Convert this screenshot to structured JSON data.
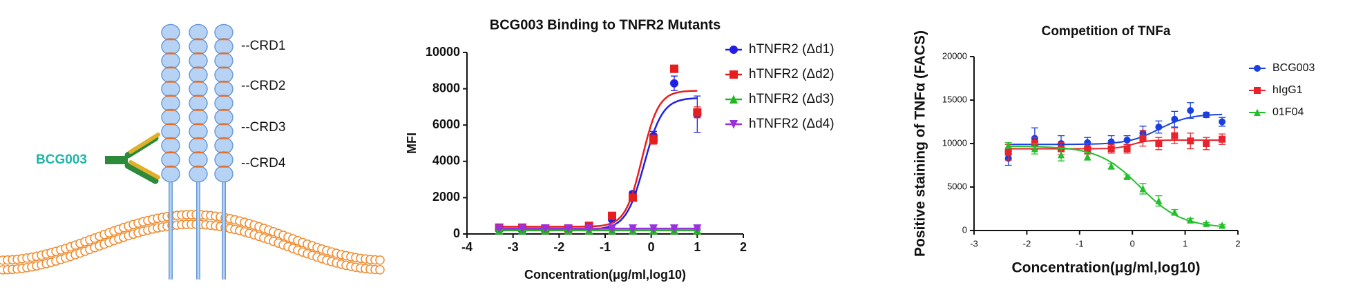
{
  "diagram": {
    "labels": [
      "--CRD1",
      "--CRD2",
      "--CRD3",
      "--CRD4"
    ],
    "antibody": "BCG003"
  },
  "chart_data": [
    {
      "type": "line",
      "title": "BCG003 Binding to TNFR2 Mutants",
      "x_label": "Concentration(μg/ml,log10)",
      "y_label": "MFI",
      "xlim": [
        -4,
        2
      ],
      "xticks": [
        -4,
        -3,
        -2,
        -1,
        0,
        1,
        2
      ],
      "ylim": [
        0,
        10000
      ],
      "yticks": [
        0,
        2000,
        4000,
        6000,
        8000,
        10000
      ],
      "grid": false,
      "legend": "right",
      "x": [
        -3.3,
        -2.8,
        -2.3,
        -1.8,
        -1.35,
        -0.85,
        -0.4,
        0.05,
        0.5,
        1.0
      ],
      "series": [
        {
          "name": "hTNFR2 (Δd1)",
          "color": "#1f1fe6",
          "marker": "circle",
          "values": [
            250,
            200,
            200,
            250,
            350,
            800,
            2200,
            5400,
            8300,
            6600
          ],
          "errors": [
            50,
            40,
            40,
            50,
            60,
            100,
            150,
            250,
            400,
            1000
          ],
          "fit": {
            "left": 250,
            "right": 7500,
            "log_ec50": -0.15,
            "hill": 2.2
          }
        },
        {
          "name": "hTNFR2 (Δd2)",
          "color": "#e61e1e",
          "marker": "square",
          "values": [
            350,
            350,
            300,
            300,
            450,
            1000,
            2000,
            5200,
            9100,
            6700
          ],
          "errors": [
            50,
            50,
            40,
            40,
            60,
            100,
            150,
            250,
            200,
            300
          ],
          "fit": {
            "left": 400,
            "right": 7900,
            "log_ec50": -0.2,
            "hill": 2.4
          }
        },
        {
          "name": "hTNFR2 (Δd3)",
          "color": "#1fb81f",
          "marker": "triangle-up",
          "values": [
            200,
            200,
            200,
            200,
            200,
            200,
            200,
            200,
            200,
            200
          ],
          "errors": [
            30,
            30,
            30,
            30,
            30,
            30,
            30,
            30,
            30,
            30
          ],
          "fit": {
            "left": 200,
            "right": 200,
            "log_ec50": 0,
            "hill": 1
          }
        },
        {
          "name": "hTNFR2 (Δd4)",
          "color": "#9b30e0",
          "marker": "triangle-down",
          "values": [
            300,
            300,
            300,
            300,
            300,
            300,
            300,
            300,
            300,
            300
          ],
          "errors": [
            30,
            30,
            30,
            30,
            30,
            30,
            30,
            30,
            30,
            30
          ],
          "fit": {
            "left": 300,
            "right": 300,
            "log_ec50": 0,
            "hill": 1
          }
        }
      ]
    },
    {
      "type": "line",
      "title": "Competition of TNFa",
      "x_label": "Concentration(μg/ml,log10)",
      "y_label": "Positive staining of TNFα (FACS)",
      "xlim": [
        -3,
        2
      ],
      "xticks": [
        -3,
        -2,
        -1,
        0,
        1,
        2
      ],
      "ylim": [
        0,
        20000
      ],
      "yticks": [
        0,
        5000,
        10000,
        15000,
        20000
      ],
      "grid": false,
      "legend": "right",
      "x": [
        -2.35,
        -1.85,
        -1.35,
        -0.85,
        -0.4,
        -0.1,
        0.2,
        0.5,
        0.8,
        1.1,
        1.4,
        1.7
      ],
      "series": [
        {
          "name": "BCG003",
          "color": "#1a3fe0",
          "marker": "circle",
          "values": [
            8300,
            10600,
            10000,
            10100,
            10200,
            10400,
            11200,
            11900,
            12800,
            13800,
            13300,
            12500
          ],
          "errors": [
            800,
            1200,
            900,
            600,
            700,
            500,
            800,
            700,
            900,
            900,
            300,
            500
          ],
          "fit": {
            "left": 9900,
            "right": 13400,
            "log_ec50": 0.5,
            "hill": 1.5
          }
        },
        {
          "name": "hIgG1",
          "color": "#e8232b",
          "marker": "square",
          "values": [
            9000,
            10000,
            9400,
            9400,
            9400,
            9400,
            10600,
            10000,
            10900,
            10300,
            10000,
            10500
          ],
          "errors": [
            900,
            700,
            700,
            600,
            500,
            500,
            900,
            700,
            900,
            900,
            700,
            600
          ],
          "fit": {
            "left": 9400,
            "right": 10400,
            "log_ec50": 0,
            "hill": 3
          }
        },
        {
          "name": "01F04",
          "color": "#22c02a",
          "marker": "triangle-up",
          "values": [
            9800,
            9400,
            8700,
            8500,
            7400,
            6200,
            4800,
            3400,
            2100,
            1200,
            800,
            600
          ],
          "errors": [
            300,
            600,
            700,
            400,
            300,
            200,
            600,
            600,
            300,
            200,
            100,
            100
          ],
          "fit": {
            "left": 9700,
            "right": 300,
            "log_ec50": 0.15,
            "hill": 1.1
          }
        }
      ]
    }
  ]
}
